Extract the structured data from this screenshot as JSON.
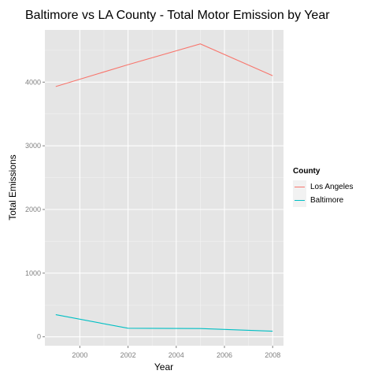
{
  "title": "Baltimore vs LA County - Total Motor Emission by Year",
  "chart_data": {
    "type": "line",
    "title": "Baltimore vs LA County - Total Motor Emission by Year",
    "xlabel": "Year",
    "ylabel": "Total Emissions",
    "x": [
      1999,
      2002,
      2005,
      2008
    ],
    "xlim": [
      1998.55,
      2008.45
    ],
    "ylim": [
      -140,
      4820
    ],
    "x_ticks": [
      2000,
      2002,
      2004,
      2006,
      2008
    ],
    "y_ticks": [
      0,
      1000,
      2000,
      3000,
      4000
    ],
    "grid": true,
    "legend": {
      "title": "County",
      "position": "right"
    },
    "series": [
      {
        "name": "Los Angeles",
        "color": "#F8766D",
        "values": [
          3931,
          4274,
          4601,
          4101
        ]
      },
      {
        "name": "Baltimore",
        "color": "#00BFC4",
        "values": [
          347,
          134,
          130,
          88
        ]
      }
    ]
  },
  "legend": {
    "title": "County",
    "items": [
      {
        "label": "Los Angeles",
        "color": "#F8766D"
      },
      {
        "label": "Baltimore",
        "color": "#00BFC4"
      }
    ]
  }
}
